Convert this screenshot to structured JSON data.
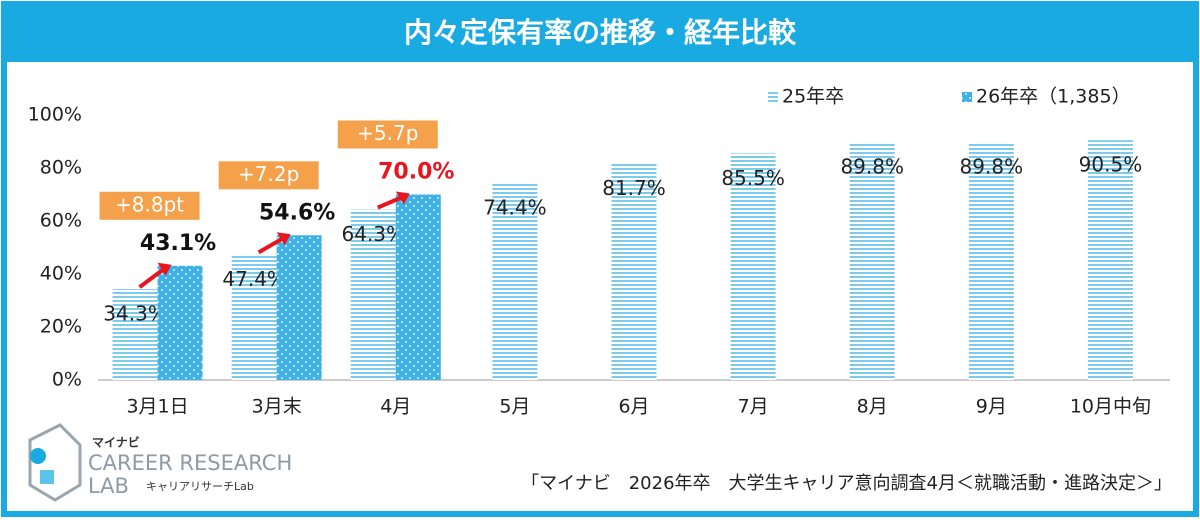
{
  "chart_data": {
    "type": "bar",
    "title": "内々定保有率の推移・経年比較",
    "categories": [
      "3月1日",
      "3月末",
      "4月",
      "5月",
      "6月",
      "7月",
      "8月",
      "9月",
      "10月中旬"
    ],
    "series": [
      {
        "name": "25年卒",
        "color": "#7ccbee",
        "values": [
          34.3,
          47.4,
          64.3,
          74.4,
          81.7,
          85.5,
          89.8,
          89.8,
          90.5
        ],
        "value_labels": [
          "34.3%",
          "47.4%",
          "64.3%",
          "74.4%",
          "81.7%",
          "85.5%",
          "89.8%",
          "89.8%",
          "90.5%"
        ]
      },
      {
        "name": "26年卒（1,385）",
        "color": "#3fb1e6",
        "values": [
          43.1,
          54.6,
          70.0,
          null,
          null,
          null,
          null,
          null,
          null
        ],
        "value_labels": [
          "43.1%",
          "54.6%",
          "70.0%",
          null,
          null,
          null,
          null,
          null,
          null
        ]
      }
    ],
    "annotations": [
      "+8.8pt",
      "+7.2p",
      "+5.7p"
    ],
    "ylim": [
      0,
      100
    ],
    "yticks": [
      {
        "value": 0,
        "label": "0%"
      },
      {
        "value": 20,
        "label": "20%"
      },
      {
        "value": 40,
        "label": "40%"
      },
      {
        "value": 60,
        "label": "60%"
      },
      {
        "value": 80,
        "label": "80%"
      },
      {
        "value": 100,
        "label": "100%"
      }
    ],
    "grid": false,
    "legend": "top-right"
  },
  "footer": {
    "brand": "マイナビ",
    "logo_line1": "CAREER RESEARCH",
    "logo_line2": "LAB",
    "logo_sub": "キャリアリサーチLab",
    "source": "「マイナビ　2026年卒　大学生キャリア意向調査4月＜就職活動・進路決定＞」"
  }
}
